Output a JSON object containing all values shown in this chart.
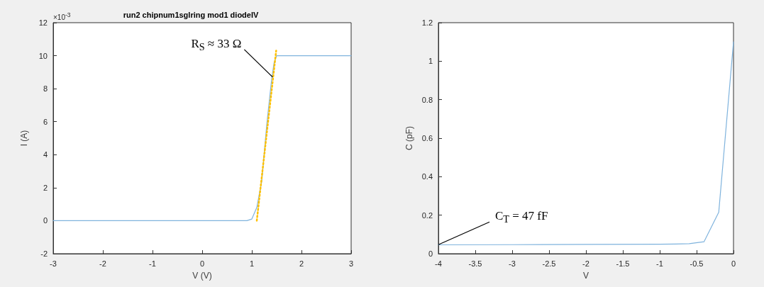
{
  "chart_data": [
    {
      "type": "line",
      "title": "run2 chipnum1sglring mod1 diodeIV",
      "xlabel": "V (V)",
      "ylabel": "I (A)",
      "x": [
        -3,
        0.9,
        1.0,
        1.1,
        1.2,
        1.3,
        1.4,
        1.45,
        1.5,
        3
      ],
      "series": [
        {
          "color": "#7fb3dd",
          "values": [
            0,
            0,
            0.1,
            0.8,
            2.4,
            5.8,
            8.6,
            9.6,
            10,
            10
          ]
        },
        {
          "type": "line",
          "color": "#ffc000",
          "line_style": "dotted",
          "x": [
            1.1,
            1.49
          ],
          "values": [
            0,
            10.3
          ]
        }
      ],
      "xlim": [
        -3,
        3
      ],
      "xticks": [
        -3,
        -2,
        -1,
        0,
        1,
        2,
        3
      ],
      "ylim": [
        -2,
        12
      ],
      "yticks": [
        -2,
        0,
        2,
        4,
        6,
        8,
        10,
        12
      ],
      "annotations": [
        "×10$^{-3}$",
        {
          "text": "R$_{S}$ ≈ 33 Ω",
          "x": 1.42,
          "y": 8.7
        }
      ]
    },
    {
      "type": "line",
      "xlabel": "V",
      "ylabel": "C (pF)",
      "x": [
        -4,
        -3,
        -2,
        -1,
        -0.8,
        -0.6,
        -0.4,
        -0.2,
        0
      ],
      "series": [
        {
          "color": "#7fb3dd",
          "values": [
            0.046,
            0.047,
            0.048,
            0.049,
            0.05,
            0.052,
            0.062,
            0.215,
            1.1
          ]
        }
      ],
      "xlim": [
        -4,
        0
      ],
      "xticks": [
        -4,
        -3.5,
        -3,
        -2.5,
        -2,
        -1.5,
        -1,
        -0.5,
        0
      ],
      "ylim": [
        0,
        1.2
      ],
      "yticks": [
        0,
        0.2,
        0.4,
        0.6,
        0.8,
        1,
        1.2
      ],
      "annotations": [
        {
          "text": "C$_{T}$ = 47 fF",
          "x": -4,
          "y": 0.047
        }
      ]
    }
  ]
}
